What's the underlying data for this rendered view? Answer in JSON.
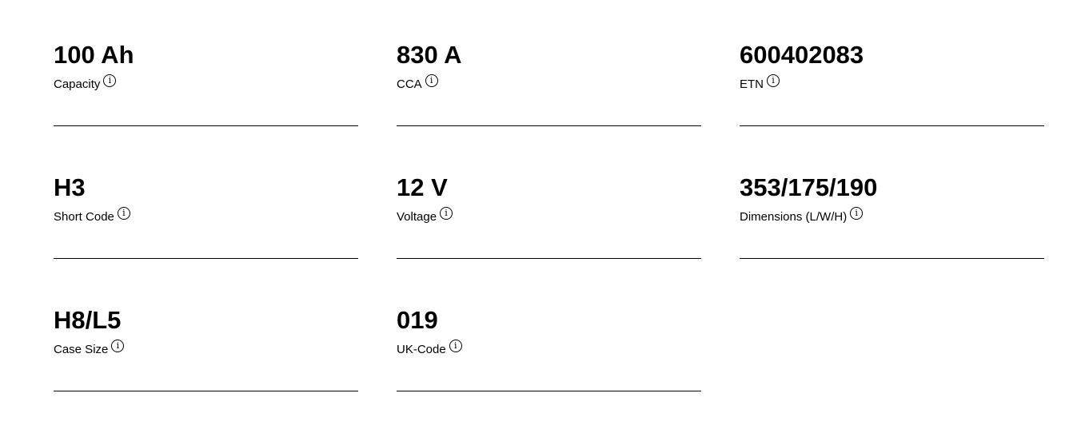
{
  "specs": [
    {
      "value": "100 Ah",
      "label": "Capacity"
    },
    {
      "value": "830 A",
      "label": "CCA"
    },
    {
      "value": "600402083",
      "label": "ETN"
    },
    {
      "value": "H3",
      "label": "Short Code"
    },
    {
      "value": "12 V",
      "label": "Voltage"
    },
    {
      "value": "353/175/190",
      "label": "Dimensions (L/W/H)"
    },
    {
      "value": "H8/L5",
      "label": "Case Size"
    },
    {
      "value": "019",
      "label": "UK-Code"
    }
  ],
  "info_glyph": "i"
}
